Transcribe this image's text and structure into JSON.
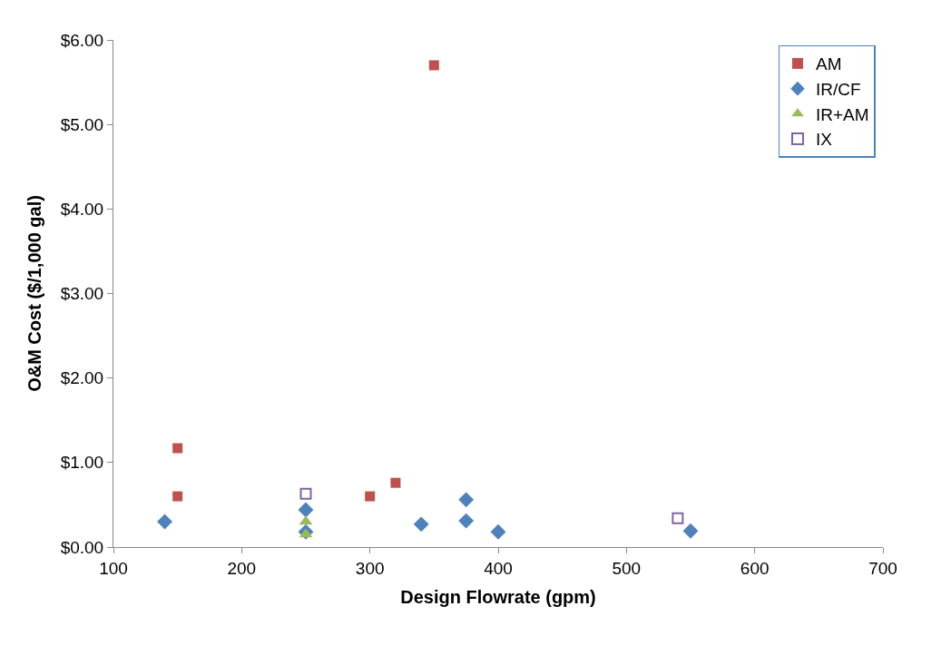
{
  "chart_data": {
    "type": "scatter",
    "xlabel": "Design Flowrate (gpm)",
    "ylabel": "O&M Cost ($/1,000 gal)",
    "xlim": [
      100,
      700
    ],
    "xticks": [
      100,
      200,
      300,
      400,
      500,
      600,
      700
    ],
    "ylim": [
      0,
      6
    ],
    "yticks": [
      {
        "value": 0,
        "label": "$0.00"
      },
      {
        "value": 1,
        "label": "$1.00"
      },
      {
        "value": 2,
        "label": "$2.00"
      },
      {
        "value": 3,
        "label": "$3.00"
      },
      {
        "value": 4,
        "label": "$4.00"
      },
      {
        "value": 5,
        "label": "$5.00"
      },
      {
        "value": 6,
        "label": "$6.00"
      }
    ],
    "legend": "top right",
    "series": [
      {
        "name": "AM",
        "color": "#c0504d",
        "marker": "square",
        "x": [
          150,
          150,
          300,
          320,
          350
        ],
        "values": [
          1.17,
          0.6,
          0.6,
          0.76,
          5.7
        ]
      },
      {
        "name": "IR/CF",
        "color": "#4f81bd",
        "marker": "diamond",
        "x": [
          140,
          250,
          250,
          340,
          375,
          375,
          400,
          550
        ],
        "values": [
          0.3,
          0.44,
          0.18,
          0.27,
          0.56,
          0.31,
          0.18,
          0.19
        ]
      },
      {
        "name": "IR+AM",
        "color": "#9bbb59",
        "marker": "triangle",
        "x": [
          250,
          250
        ],
        "values": [
          0.3,
          0.15
        ]
      },
      {
        "name": "IX",
        "color": "#8064a2",
        "marker": "square-open",
        "x": [
          250,
          540
        ],
        "values": [
          0.63,
          0.34
        ]
      }
    ]
  }
}
